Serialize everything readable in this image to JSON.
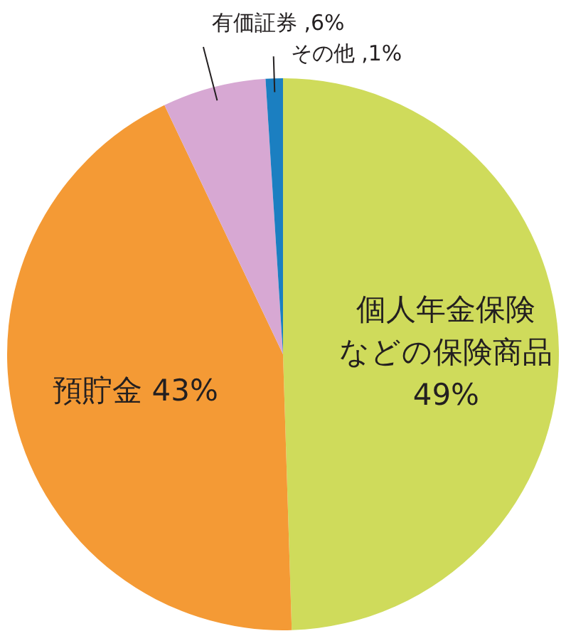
{
  "chart_data": {
    "type": "pie",
    "categories": [
      "個人年金保険などの保険商品",
      "預貯金",
      "有価証券",
      "その他"
    ],
    "values": [
      49,
      43,
      6,
      1
    ],
    "value_labels": [
      "49%",
      "43%",
      ",6%",
      ",1%"
    ],
    "colors": [
      "#cfdb5b",
      "#f49a35",
      "#d7a8d3",
      "#1b7fc1"
    ]
  }
}
